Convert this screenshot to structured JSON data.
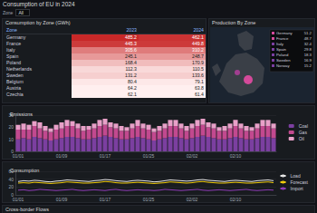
{
  "header": {
    "title": "Consumption of EU in 2024",
    "filter_label": "Zone",
    "filter_value": "All"
  },
  "table": {
    "title": "Consumption by Zone (GWh)",
    "columns": [
      "Zone",
      "2023",
      "2024"
    ],
    "rows": [
      [
        "Germany",
        485.2,
        462.1
      ],
      [
        "France",
        445.3,
        449.8
      ],
      [
        "Italy",
        305.6,
        310.2
      ],
      [
        "Spain",
        245.1,
        248.7
      ],
      [
        "Poland",
        168.4,
        170.9
      ],
      [
        "Netherlands",
        112.3,
        110.5
      ],
      [
        "Sweden",
        131.2,
        133.6
      ],
      [
        "Belgium",
        80.4,
        79.1
      ],
      [
        "Austria",
        64.2,
        63.8
      ],
      [
        "Czechia",
        62.1,
        61.4
      ]
    ]
  },
  "map": {
    "title": "Production By Zone",
    "legend": [
      {
        "label": "Germany",
        "value": 51.2
      },
      {
        "label": "France",
        "value": 48.7
      },
      {
        "label": "Italy",
        "value": 32.4
      },
      {
        "label": "Spain",
        "value": 29.8
      },
      {
        "label": "Poland",
        "value": 18.3
      },
      {
        "label": "Sweden",
        "value": 16.9
      },
      {
        "label": "Norway",
        "value": 15.2
      }
    ]
  },
  "chart_data": [
    {
      "type": "bar",
      "title": "Emissions",
      "stacked": true,
      "grid": true,
      "legend": "right",
      "categories": [
        "01/01",
        null,
        null,
        null,
        null,
        null,
        null,
        null,
        "01/09",
        null,
        null,
        null,
        null,
        null,
        null,
        null,
        "01/17",
        null,
        null,
        null,
        null,
        null,
        null,
        null,
        "01/25",
        null,
        null,
        null,
        null,
        null,
        null,
        null,
        "02/02",
        null,
        null,
        null,
        null,
        null,
        null,
        null,
        "02/10",
        null,
        null,
        null,
        null,
        null,
        null,
        null
      ],
      "ylim": [
        0,
        30
      ],
      "yticks": [
        0,
        10,
        20,
        30
      ],
      "series": [
        {
          "name": "Coal",
          "color": "#7b3fa0",
          "values": [
            10,
            11,
            10,
            12,
            11,
            10,
            9,
            10,
            11,
            12,
            12,
            11,
            10,
            10,
            11,
            12,
            13,
            12,
            11,
            10,
            10,
            11,
            12,
            11,
            10,
            9,
            10,
            11,
            12,
            12,
            11,
            10,
            11,
            12,
            13,
            12,
            11,
            10,
            10,
            11,
            12,
            11,
            10,
            10,
            11,
            12,
            12,
            11
          ]
        },
        {
          "name": "Gas",
          "color": "#c2498f",
          "values": [
            8,
            7,
            8,
            9,
            8,
            7,
            7,
            8,
            8,
            9,
            9,
            8,
            7,
            8,
            8,
            9,
            9,
            8,
            8,
            7,
            7,
            8,
            9,
            8,
            8,
            7,
            7,
            8,
            9,
            9,
            8,
            7,
            8,
            9,
            9,
            8,
            8,
            7,
            7,
            8,
            9,
            8,
            7,
            7,
            8,
            9,
            9,
            8
          ]
        },
        {
          "name": "Oil",
          "color": "#e8a0c8",
          "values": [
            4,
            5,
            4,
            4,
            5,
            4,
            3,
            4,
            5,
            5,
            4,
            4,
            4,
            3,
            4,
            5,
            5,
            4,
            4,
            4,
            3,
            4,
            5,
            4,
            4,
            3,
            4,
            4,
            5,
            5,
            4,
            4,
            4,
            5,
            5,
            4,
            4,
            3,
            4,
            4,
            5,
            4,
            4,
            3,
            4,
            5,
            5,
            4
          ]
        }
      ]
    },
    {
      "type": "line",
      "title": "Consumption",
      "grid": true,
      "legend": "right",
      "categories": [
        "01/01",
        null,
        null,
        null,
        null,
        null,
        null,
        null,
        "01/09",
        null,
        null,
        null,
        null,
        null,
        null,
        null,
        "01/17",
        null,
        null,
        null,
        null,
        null,
        null,
        null,
        "01/25",
        null,
        null,
        null,
        null,
        null,
        null,
        null,
        "02/02",
        null,
        null,
        null,
        null,
        null,
        null,
        null,
        "02/10",
        null,
        null,
        null,
        null,
        null,
        null,
        null
      ],
      "ylim": [
        0,
        60
      ],
      "yticks": [
        0,
        20,
        40,
        60
      ],
      "series": [
        {
          "name": "Load",
          "color": "#e6e6e6",
          "values": [
            34,
            36,
            35,
            37,
            36,
            34,
            33,
            35,
            36,
            38,
            37,
            36,
            35,
            34,
            36,
            37,
            39,
            38,
            36,
            35,
            34,
            36,
            37,
            36,
            35,
            33,
            34,
            36,
            38,
            37,
            36,
            35,
            36,
            38,
            39,
            37,
            36,
            35,
            34,
            36,
            37,
            36,
            35,
            34,
            36,
            37,
            38,
            36
          ]
        },
        {
          "name": "Forecast",
          "color": "#f2cc0c",
          "values": [
            30,
            31,
            30,
            32,
            31,
            30,
            29,
            30,
            31,
            33,
            32,
            31,
            30,
            30,
            31,
            32,
            34,
            33,
            31,
            30,
            30,
            31,
            32,
            31,
            30,
            29,
            30,
            31,
            33,
            32,
            31,
            30,
            31,
            33,
            34,
            32,
            31,
            30,
            30,
            31,
            32,
            31,
            30,
            30,
            31,
            32,
            33,
            31
          ]
        },
        {
          "name": "Import",
          "color": "#8f3bb8",
          "values": [
            12,
            13,
            11,
            12,
            14,
            13,
            12,
            11,
            12,
            13,
            14,
            12,
            11,
            12,
            13,
            12,
            11,
            13,
            14,
            12,
            11,
            12,
            13,
            12,
            12,
            11,
            12,
            14,
            13,
            12,
            11,
            12,
            13,
            14,
            12,
            11,
            12,
            13,
            12,
            11,
            12,
            13,
            14,
            12,
            11,
            12,
            13,
            12
          ]
        }
      ]
    }
  ],
  "footer_panel": {
    "title": "Cross-border Flows"
  }
}
